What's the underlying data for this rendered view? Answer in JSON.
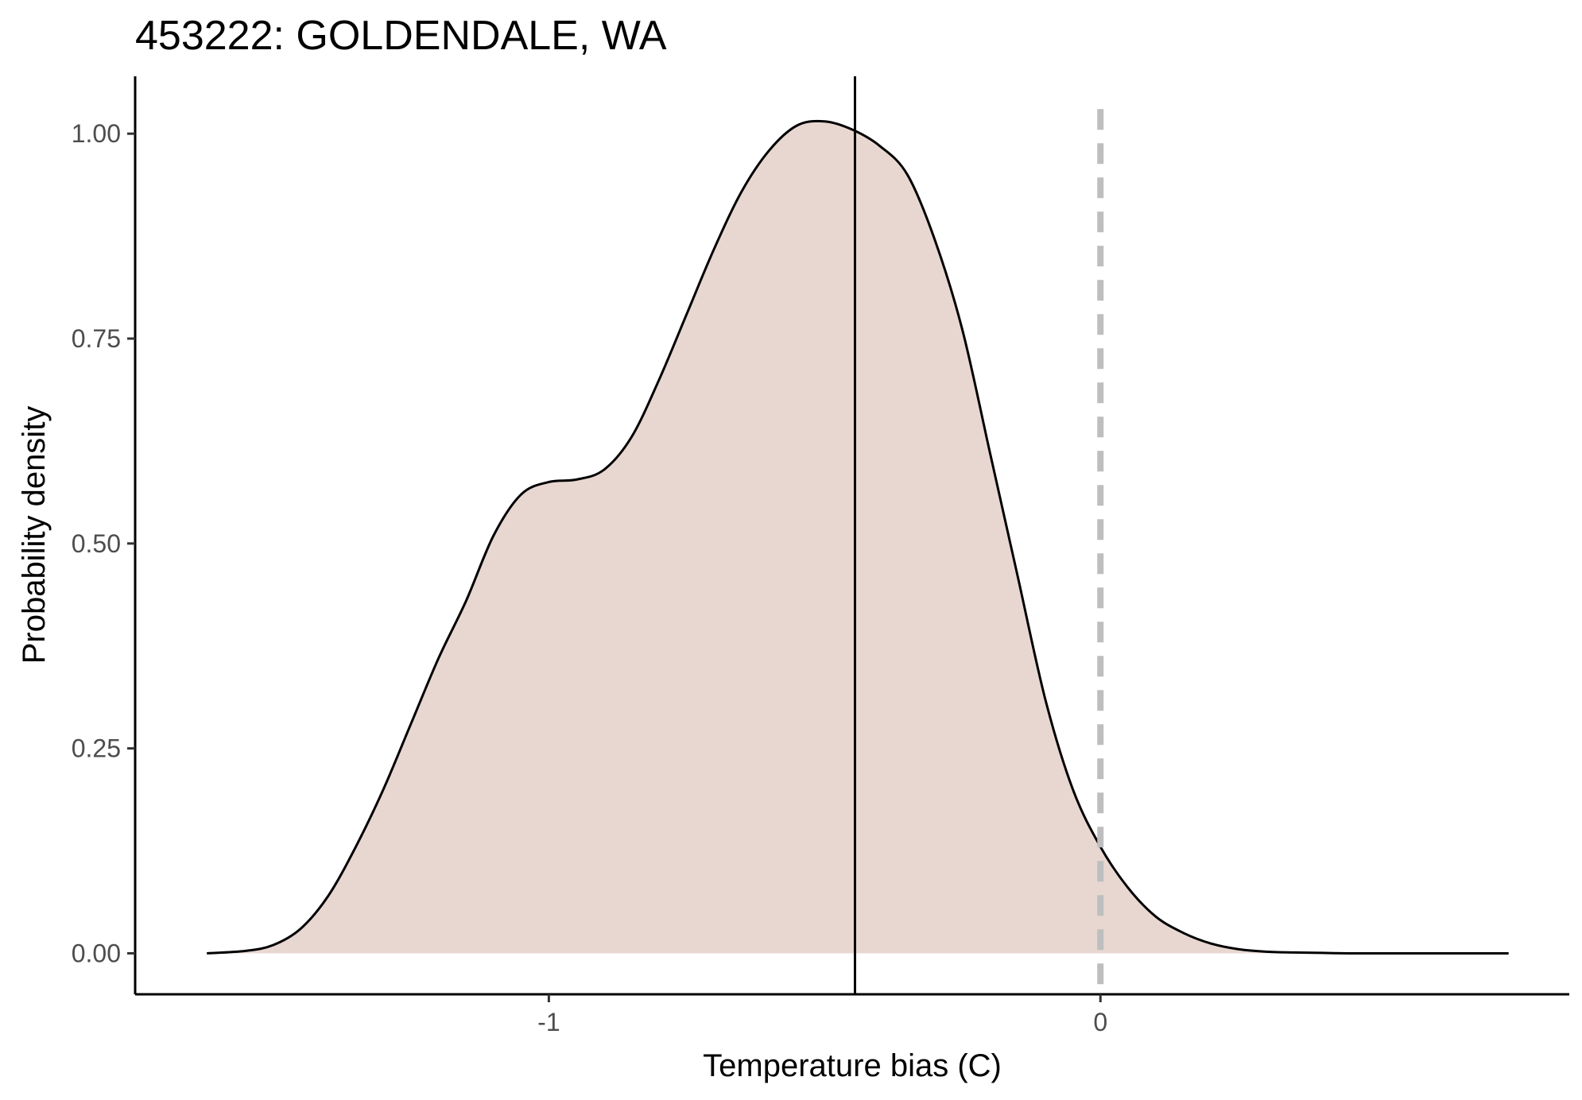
{
  "chart_data": {
    "type": "area",
    "title": "453222: GOLDENDALE, WA",
    "xlabel": "Temperature bias (C)",
    "ylabel": "Probability density",
    "xlim": [
      -1.75,
      0.85
    ],
    "ylim": [
      -0.05,
      1.07
    ],
    "x_ticks": [
      -1,
      0
    ],
    "x_tick_labels": [
      "-1",
      "0"
    ],
    "y_ticks": [
      0,
      0.25,
      0.5,
      0.75,
      1.0
    ],
    "y_tick_labels": [
      "0.00",
      "0.25",
      "0.50",
      "0.75",
      "1.00"
    ],
    "grid": false,
    "fill_color": "#e8d7d1",
    "line_color": "#000000",
    "mean_line": {
      "x": -0.445,
      "color": "#000000",
      "style": "solid"
    },
    "reference_line": {
      "x": 0,
      "color": "#bebebe",
      "style": "dashed"
    },
    "series": [
      {
        "x": [
          -1.62,
          -1.55,
          -1.5,
          -1.45,
          -1.4,
          -1.35,
          -1.3,
          -1.25,
          -1.2,
          -1.15,
          -1.1,
          -1.05,
          -1.0,
          -0.95,
          -0.9,
          -0.85,
          -0.8,
          -0.75,
          -0.7,
          -0.65,
          -0.6,
          -0.55,
          -0.5,
          -0.45,
          -0.4,
          -0.35,
          -0.3,
          -0.25,
          -0.2,
          -0.15,
          -0.1,
          -0.05,
          0.0,
          0.05,
          0.1,
          0.15,
          0.2,
          0.25,
          0.3,
          0.35,
          0.4,
          0.45,
          0.5,
          0.55,
          0.6,
          0.65,
          0.7,
          0.74
        ],
        "y": [
          0.0,
          0.003,
          0.01,
          0.03,
          0.07,
          0.13,
          0.2,
          0.28,
          0.36,
          0.43,
          0.51,
          0.56,
          0.575,
          0.578,
          0.59,
          0.63,
          0.7,
          0.78,
          0.86,
          0.93,
          0.98,
          1.01,
          1.015,
          1.005,
          0.985,
          0.95,
          0.87,
          0.76,
          0.61,
          0.46,
          0.31,
          0.2,
          0.13,
          0.08,
          0.045,
          0.025,
          0.012,
          0.005,
          0.002,
          0.001,
          0.0005,
          0.0,
          0.0,
          0.0,
          0.0,
          0.0,
          0.0,
          0.0
        ]
      }
    ]
  }
}
